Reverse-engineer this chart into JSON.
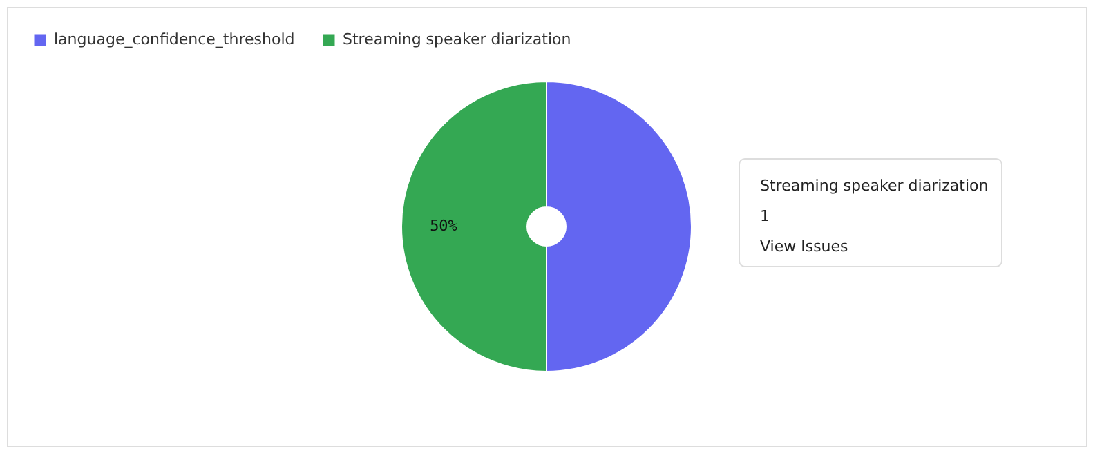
{
  "chart_data": {
    "type": "donut",
    "categories": [
      "language_confidence_threshold",
      "Streaming speaker diarization"
    ],
    "values": [
      50,
      50
    ],
    "colors": [
      "#6366f1",
      "#34a853"
    ],
    "value_labels": [
      null,
      "50%"
    ],
    "legend": "top left",
    "annotations": [
      "Streaming speaker diarization",
      "1",
      "View Issues"
    ]
  }
}
